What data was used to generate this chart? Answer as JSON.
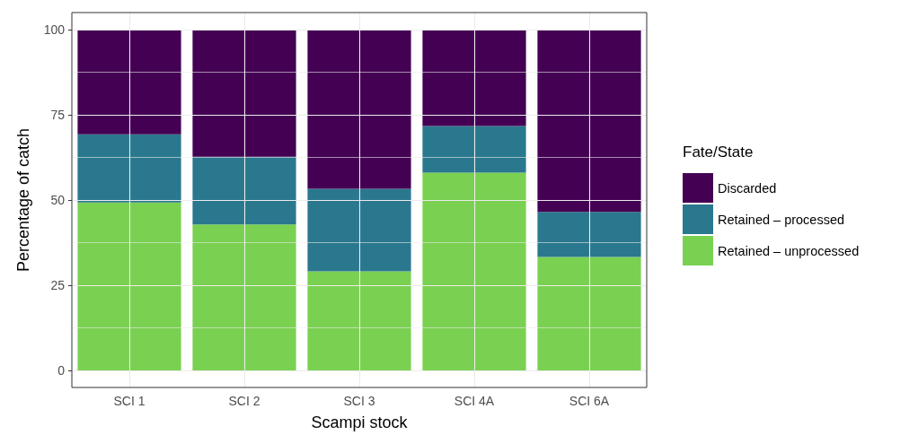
{
  "chart_data": {
    "type": "bar",
    "stacked": true,
    "xlabel": "Scampi stock",
    "ylabel": "Percentage of catch",
    "legend_title": "Fate/State",
    "categories": [
      "SCI 1",
      "SCI 2",
      "SCI 3",
      "SCI 4A",
      "SCI 6A"
    ],
    "series": [
      {
        "name": "Retained – unprocessed",
        "color": "#7ad151",
        "values": [
          49.3,
          42.8,
          29.1,
          58.0,
          33.3
        ]
      },
      {
        "name": "Retained – processed",
        "color": "#2a788e",
        "values": [
          20.0,
          19.9,
          24.2,
          13.7,
          13.2
        ]
      },
      {
        "name": "Discarded",
        "color": "#440154",
        "values": [
          30.7,
          37.3,
          46.7,
          28.3,
          53.5
        ]
      }
    ],
    "ylim": [
      -5,
      105
    ],
    "yticks": [
      0,
      25,
      50,
      75,
      100
    ],
    "grid": true,
    "legend": "right"
  }
}
